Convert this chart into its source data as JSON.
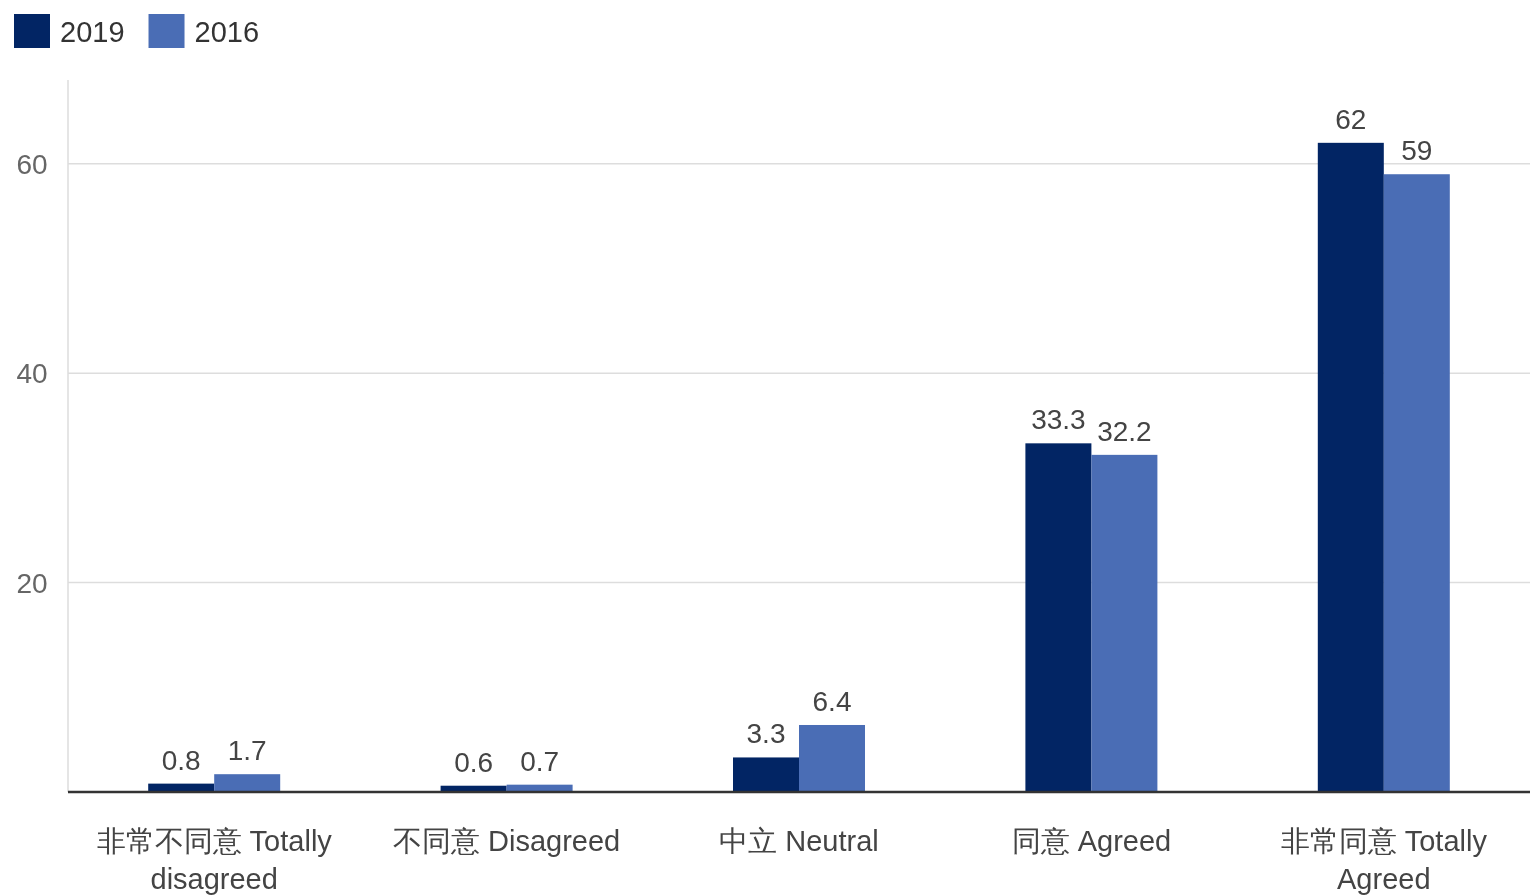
{
  "chart_data": {
    "type": "bar",
    "categories": [
      "非常不同意 Totally disagreed",
      "不同意 Disagreed",
      "中立 Neutral",
      "同意 Agreed",
      "非常同意 Totally Agreed"
    ],
    "series": [
      {
        "name": "2019",
        "color": "#022564",
        "values": [
          0.8,
          0.6,
          3.3,
          33.3,
          62
        ]
      },
      {
        "name": "2016",
        "color": "#4a6db5",
        "values": [
          1.7,
          0.7,
          6.4,
          32.2,
          59
        ]
      }
    ],
    "ylim": [
      0,
      68
    ],
    "yticks": [
      20,
      40,
      60
    ],
    "grid": "y",
    "legend": "top left",
    "data_labels": true
  }
}
